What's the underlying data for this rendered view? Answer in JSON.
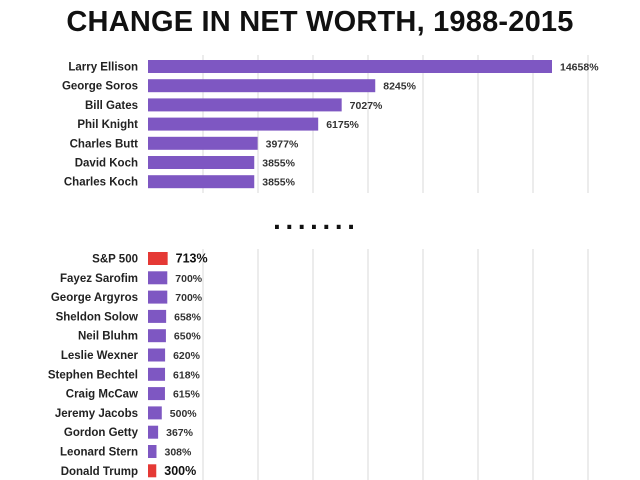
{
  "chart_data": {
    "type": "bar",
    "orientation": "horizontal",
    "title": "CHANGE IN NET WORTH, 1988-2015",
    "value_suffix": "%",
    "gap_marker": ".......",
    "colors": {
      "bar": "#7E57C2",
      "highlight": "#E53935",
      "grid": "#d9d9d9"
    },
    "groups": [
      {
        "scale_max": 14658,
        "categories": [
          "Larry Ellison",
          "George Soros",
          "Bill Gates",
          "Phil Knight",
          "Charles Butt",
          "David Koch",
          "Charles Koch"
        ],
        "values": [
          14658,
          8245,
          7027,
          6175,
          3977,
          3855,
          3855
        ],
        "highlight": [
          false,
          false,
          false,
          false,
          false,
          false,
          false
        ]
      },
      {
        "scale_max": 14658,
        "categories": [
          "S&P 500",
          "Fayez Sarofim",
          "George Argyros",
          "Sheldon Solow",
          "Neil Bluhm",
          "Leslie Wexner",
          "Stephen Bechtel",
          "Craig McCaw",
          "Jeremy Jacobs",
          "Gordon Getty",
          "Leonard Stern",
          "Donald Trump"
        ],
        "values": [
          713,
          700,
          700,
          658,
          650,
          620,
          618,
          615,
          500,
          367,
          308,
          300
        ],
        "highlight": [
          true,
          false,
          false,
          false,
          false,
          false,
          false,
          false,
          false,
          false,
          false,
          true
        ]
      }
    ]
  }
}
